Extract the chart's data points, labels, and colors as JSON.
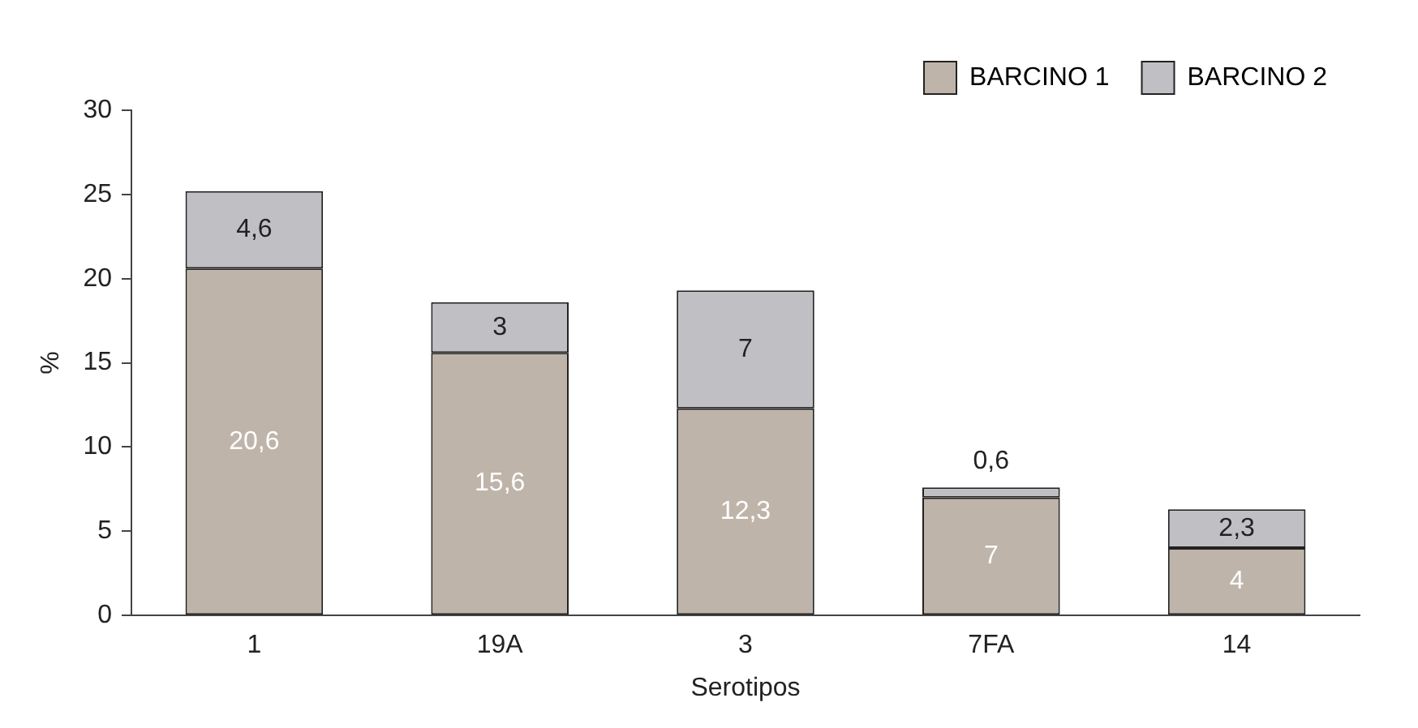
{
  "chart_data": {
    "type": "bar",
    "stacked": true,
    "xlabel": "Serotipos",
    "ylabel": "%",
    "categories": [
      "1",
      "19A",
      "3",
      "7FA",
      "14"
    ],
    "series": [
      {
        "name": "BARCINO 1",
        "color": "#bfb4a9",
        "values": [
          20.6,
          15.6,
          12.3,
          7,
          4
        ],
        "value_labels": [
          "20,6",
          "15,6",
          "12,3",
          "7",
          "4"
        ]
      },
      {
        "name": "BARCINO 2",
        "color": "#c0c0c4",
        "values": [
          4.6,
          3,
          7,
          0.6,
          2.3
        ],
        "value_labels": [
          "4,6",
          "3",
          "7",
          "0,6",
          "2,3"
        ]
      }
    ],
    "ylim": [
      0,
      30
    ],
    "yticks": [
      0,
      5,
      10,
      15,
      20,
      25,
      30
    ],
    "grid": false,
    "legend": "top right"
  }
}
